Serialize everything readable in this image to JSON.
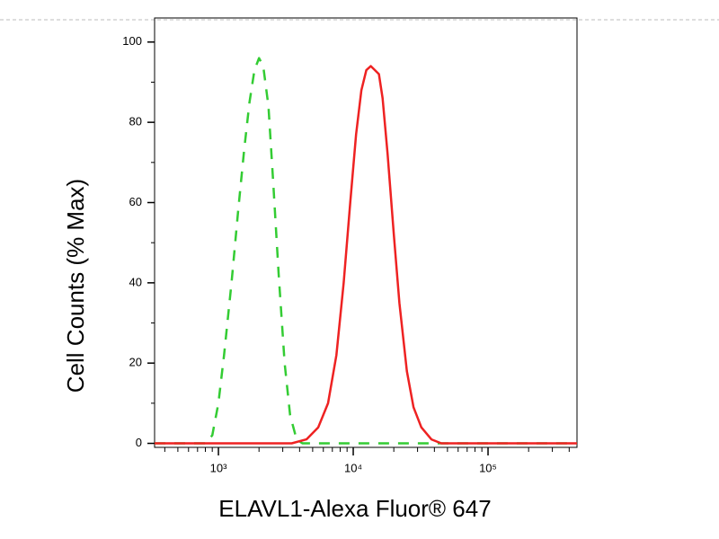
{
  "chart_data": {
    "type": "line",
    "xlabel": "ELAVL1-Alexa Fluor® 647",
    "ylabel": "Cell Counts (% Max)",
    "xscale": "log",
    "xlim": [
      336,
      457000
    ],
    "ylim": [
      -1,
      106
    ],
    "xticks": [
      {
        "value": 1000,
        "label": "10³"
      },
      {
        "value": 10000,
        "label": "10⁴"
      },
      {
        "value": 100000,
        "label": "10⁵"
      }
    ],
    "xminorticks": [
      400,
      500,
      600,
      700,
      800,
      900,
      2000,
      3000,
      4000,
      5000,
      6000,
      7000,
      8000,
      9000,
      20000,
      30000,
      40000,
      50000,
      60000,
      70000,
      80000,
      90000,
      200000,
      300000,
      400000
    ],
    "yticks": [
      0,
      20,
      40,
      60,
      80,
      100
    ],
    "yminorticks": [
      10,
      30,
      50,
      70,
      90
    ],
    "series": [
      {
        "color": "#33cc33",
        "linestyle": "dashed",
        "x": [
          336,
          800,
          900,
          1000,
          1100,
          1250,
          1400,
          1550,
          1700,
          1850,
          2000,
          2150,
          2350,
          2550,
          2800,
          3100,
          3400,
          3800,
          4200,
          457000
        ],
        "values": [
          0,
          0,
          2,
          10,
          22,
          40,
          58,
          73,
          85,
          93,
          96,
          94,
          84,
          65,
          42,
          20,
          7,
          1,
          0,
          0
        ]
      },
      {
        "color": "#ee2222",
        "linestyle": "solid",
        "x": [
          336,
          3500,
          4500,
          5500,
          6500,
          7500,
          8500,
          9500,
          10500,
          11500,
          12500,
          13500,
          14500,
          15500,
          16500,
          18000,
          20000,
          22000,
          25000,
          28000,
          32000,
          38000,
          45000,
          457000
        ],
        "values": [
          0,
          0,
          1,
          4,
          10,
          22,
          40,
          60,
          77,
          88,
          93,
          94,
          93,
          92,
          86,
          72,
          52,
          35,
          18,
          9,
          4,
          1,
          0,
          0
        ]
      }
    ]
  }
}
